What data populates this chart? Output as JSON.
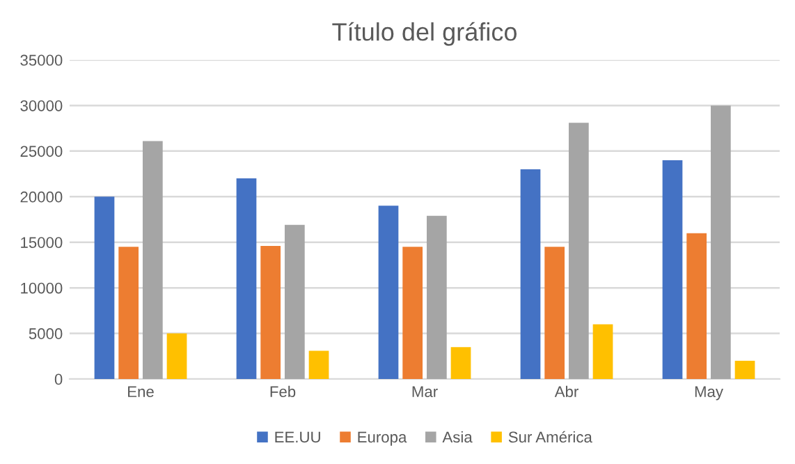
{
  "chart_data": {
    "type": "bar",
    "title": "Título del gráfico",
    "categories": [
      "Ene",
      "Feb",
      "Mar",
      "Abr",
      "May"
    ],
    "series": [
      {
        "name": "EE.UU",
        "color": "#4472c4",
        "values": [
          20000,
          22000,
          19000,
          23000,
          24000
        ]
      },
      {
        "name": "Europa",
        "color": "#ed7d31",
        "values": [
          14500,
          14600,
          14500,
          14500,
          16000
        ]
      },
      {
        "name": "Asia",
        "color": "#a5a5a5",
        "values": [
          26100,
          16900,
          17900,
          28100,
          30000
        ]
      },
      {
        "name": "Sur América",
        "color": "#ffc000",
        "values": [
          5000,
          3100,
          3500,
          6000,
          2000
        ]
      }
    ],
    "ylim": [
      0,
      35000
    ],
    "yticks": [
      0,
      5000,
      10000,
      15000,
      20000,
      25000,
      30000,
      35000
    ],
    "grid": "y",
    "legend": "bottom"
  }
}
